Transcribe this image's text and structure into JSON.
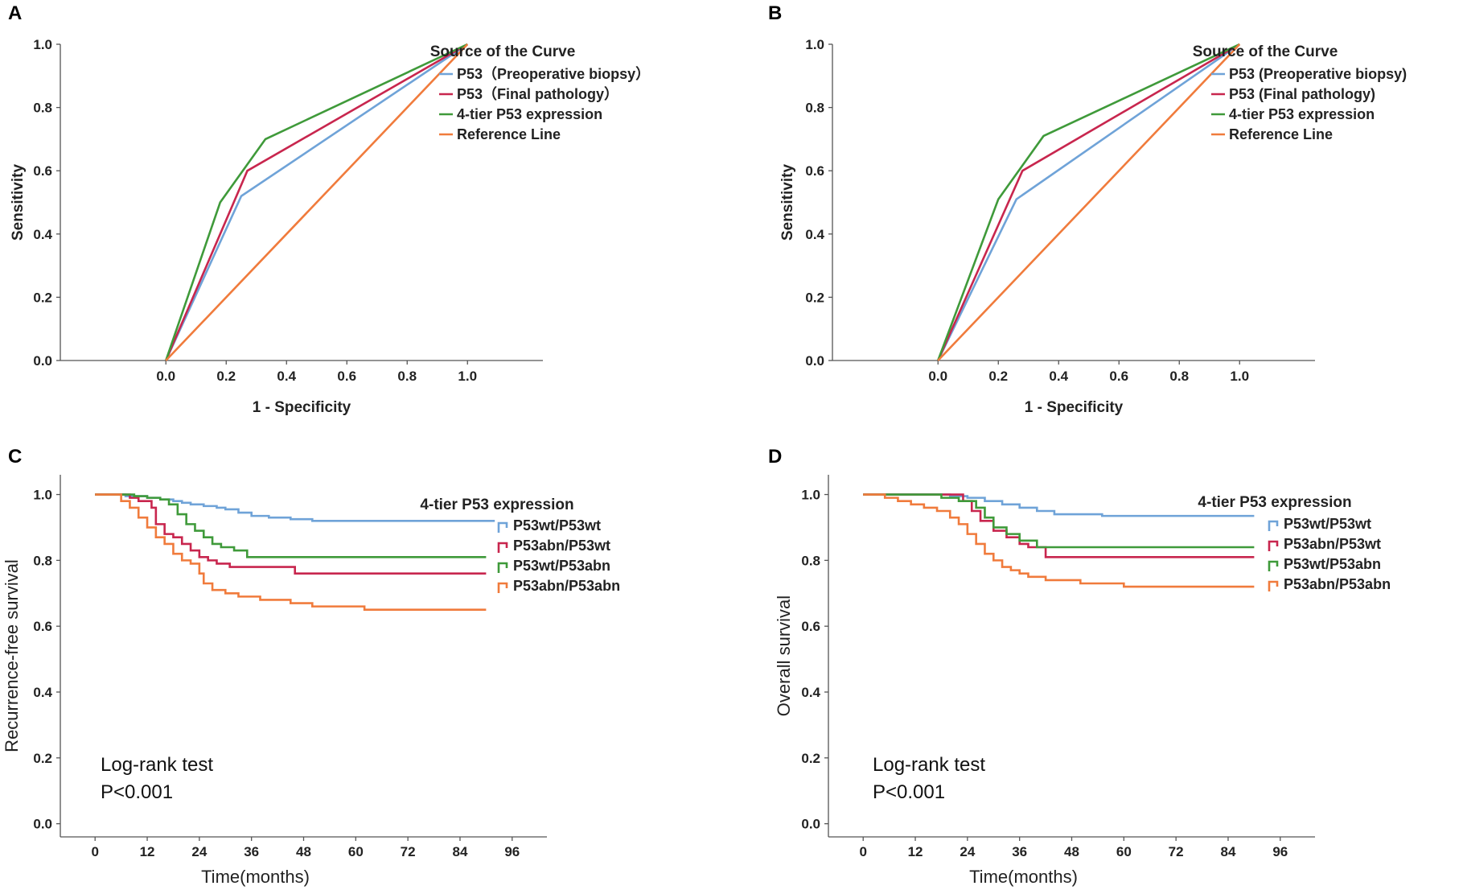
{
  "colors": {
    "blue": "#6fa3d8",
    "red": "#c8264e",
    "green": "#3f9a3a",
    "orange": "#f07b3c",
    "axis": "#555555"
  },
  "chart_data": [
    {
      "panel": "A",
      "type": "line",
      "subtype": "roc",
      "xlabel": "1 - Specificity",
      "ylabel": "Sensitivity",
      "xlim": [
        -0.35,
        1.25
      ],
      "ylim": [
        0,
        1
      ],
      "xticks": [
        "0.0",
        "0.2",
        "0.4",
        "0.6",
        "0.8",
        "1.0"
      ],
      "yticks": [
        "0.0",
        "0.2",
        "0.4",
        "0.6",
        "0.8",
        "1.0"
      ],
      "legend_title": "Source of the Curve",
      "legend_position": "top-right",
      "series": [
        {
          "name": "P53（Preoperative biopsy）",
          "color_key": "blue",
          "x": [
            0,
            0.25,
            1
          ],
          "y": [
            0,
            0.52,
            1
          ]
        },
        {
          "name": "P53（Final pathology）",
          "color_key": "red",
          "x": [
            0,
            0.27,
            1
          ],
          "y": [
            0,
            0.6,
            1
          ]
        },
        {
          "name": "4-tier P53 expression",
          "color_key": "green",
          "x": [
            0,
            0.18,
            0.33,
            1
          ],
          "y": [
            0,
            0.5,
            0.7,
            1
          ]
        },
        {
          "name": "Reference Line",
          "color_key": "orange",
          "x": [
            0,
            1
          ],
          "y": [
            0,
            1
          ]
        }
      ]
    },
    {
      "panel": "B",
      "type": "line",
      "subtype": "roc",
      "xlabel": "1 - Specificity",
      "ylabel": "Sensitivity",
      "xlim": [
        -0.35,
        1.25
      ],
      "ylim": [
        0,
        1
      ],
      "xticks": [
        "0.0",
        "0.2",
        "0.4",
        "0.6",
        "0.8",
        "1.0"
      ],
      "yticks": [
        "0.0",
        "0.2",
        "0.4",
        "0.6",
        "0.8",
        "1.0"
      ],
      "legend_title": "Source of the Curve",
      "legend_position": "top-right",
      "series": [
        {
          "name": "P53 (Preoperative biopsy)",
          "color_key": "blue",
          "x": [
            0,
            0.26,
            1
          ],
          "y": [
            0,
            0.51,
            1
          ]
        },
        {
          "name": "P53 (Final pathology)",
          "color_key": "red",
          "x": [
            0,
            0.28,
            1
          ],
          "y": [
            0,
            0.6,
            1
          ]
        },
        {
          "name": "4-tier P53 expression",
          "color_key": "green",
          "x": [
            0,
            0.2,
            0.35,
            1
          ],
          "y": [
            0,
            0.51,
            0.71,
            1
          ]
        },
        {
          "name": "Reference Line",
          "color_key": "orange",
          "x": [
            0,
            1
          ],
          "y": [
            0,
            1
          ]
        }
      ]
    },
    {
      "panel": "C",
      "type": "line",
      "subtype": "km",
      "xlabel": "Time(months)",
      "ylabel": "Recurrence-free survival",
      "xlim": [
        -8,
        104
      ],
      "ylim": [
        -0.04,
        1.06
      ],
      "xticks": [
        "0",
        "12",
        "24",
        "36",
        "48",
        "60",
        "72",
        "84",
        "96"
      ],
      "yticks": [
        "0.0",
        "0.2",
        "0.4",
        "0.6",
        "0.8",
        "1.0"
      ],
      "legend_title": "4-tier P53 expression",
      "legend_position": "top-right",
      "annotation": [
        "Log-rank test",
        "P<0.001"
      ],
      "series": [
        {
          "name": "P53wt/P53wt",
          "color_key": "blue",
          "x": [
            0,
            7,
            12,
            15,
            18,
            20,
            22,
            25,
            28,
            30,
            33,
            36,
            40,
            45,
            50,
            92
          ],
          "y": [
            1.0,
            0.995,
            0.99,
            0.985,
            0.98,
            0.975,
            0.97,
            0.965,
            0.96,
            0.955,
            0.945,
            0.935,
            0.93,
            0.925,
            0.92,
            0.92
          ]
        },
        {
          "name": "P53abn/P53wt",
          "color_key": "red",
          "x": [
            0,
            8,
            10,
            13,
            14,
            16,
            18,
            20,
            22,
            24,
            26,
            28,
            31,
            37,
            46,
            90
          ],
          "y": [
            1.0,
            0.99,
            0.98,
            0.96,
            0.91,
            0.88,
            0.87,
            0.85,
            0.83,
            0.81,
            0.8,
            0.79,
            0.78,
            0.78,
            0.76,
            0.76
          ]
        },
        {
          "name": "P53wt/P53abn",
          "color_key": "green",
          "x": [
            0,
            9,
            12,
            15,
            17,
            19,
            21,
            23,
            25,
            27,
            29,
            32,
            35,
            90
          ],
          "y": [
            1.0,
            0.995,
            0.99,
            0.985,
            0.97,
            0.94,
            0.91,
            0.89,
            0.87,
            0.85,
            0.84,
            0.83,
            0.81,
            0.81
          ]
        },
        {
          "name": "P53abn/P53abn",
          "color_key": "orange",
          "x": [
            0,
            6,
            8,
            10,
            12,
            14,
            16,
            18,
            20,
            22,
            24,
            25,
            27,
            30,
            33,
            38,
            45,
            50,
            55,
            62,
            90
          ],
          "y": [
            1.0,
            0.98,
            0.96,
            0.93,
            0.9,
            0.87,
            0.85,
            0.82,
            0.8,
            0.79,
            0.76,
            0.73,
            0.71,
            0.7,
            0.69,
            0.68,
            0.67,
            0.66,
            0.66,
            0.65,
            0.65
          ]
        }
      ]
    },
    {
      "panel": "D",
      "type": "line",
      "subtype": "km",
      "xlabel": "Time(months)",
      "ylabel": "Overall survival",
      "xlim": [
        -8,
        104
      ],
      "ylim": [
        -0.04,
        1.06
      ],
      "xticks": [
        "0",
        "12",
        "24",
        "36",
        "48",
        "60",
        "72",
        "84",
        "96"
      ],
      "yticks": [
        "0.0",
        "0.2",
        "0.4",
        "0.6",
        "0.8",
        "1.0"
      ],
      "legend_title": "4-tier P53 expression",
      "legend_position": "top-right",
      "annotation": [
        "Log-rank test",
        "P<0.001"
      ],
      "series": [
        {
          "name": "P53wt/P53wt",
          "color_key": "blue",
          "x": [
            0,
            20,
            24,
            28,
            32,
            36,
            40,
            44,
            55,
            90
          ],
          "y": [
            1.0,
            0.995,
            0.99,
            0.98,
            0.97,
            0.96,
            0.95,
            0.94,
            0.935,
            0.935
          ]
        },
        {
          "name": "P53abn/P53wt",
          "color_key": "red",
          "x": [
            0,
            23,
            25,
            27,
            30,
            33,
            36,
            38,
            42,
            90
          ],
          "y": [
            1.0,
            0.98,
            0.95,
            0.92,
            0.89,
            0.87,
            0.85,
            0.84,
            0.81,
            0.81
          ]
        },
        {
          "name": "P53wt/P53abn",
          "color_key": "green",
          "x": [
            0,
            18,
            22,
            26,
            28,
            30,
            33,
            36,
            40,
            90
          ],
          "y": [
            1.0,
            0.99,
            0.98,
            0.96,
            0.93,
            0.9,
            0.88,
            0.86,
            0.84,
            0.84
          ]
        },
        {
          "name": "P53abn/P53abn",
          "color_key": "orange",
          "x": [
            0,
            5,
            8,
            11,
            14,
            17,
            20,
            22,
            24,
            26,
            28,
            30,
            32,
            34,
            36,
            38,
            42,
            50,
            60,
            90
          ],
          "y": [
            1.0,
            0.99,
            0.98,
            0.97,
            0.96,
            0.95,
            0.93,
            0.91,
            0.88,
            0.85,
            0.82,
            0.8,
            0.78,
            0.77,
            0.76,
            0.75,
            0.74,
            0.73,
            0.72,
            0.72
          ]
        }
      ]
    }
  ]
}
